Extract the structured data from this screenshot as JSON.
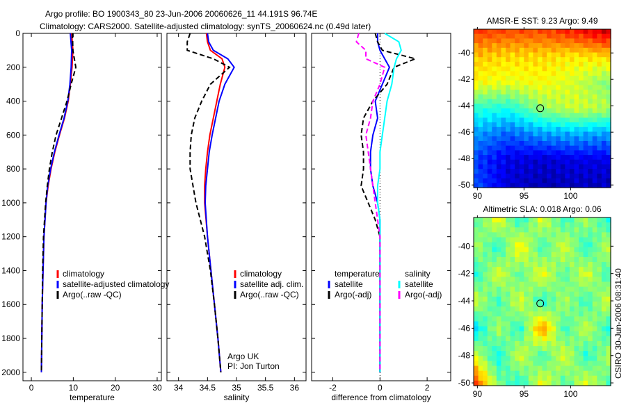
{
  "title_line1": "Argo profile: BO 1900343_80 23-Jun-2006 20060626_11 44.191S 96.74E",
  "title_line2": "Climatology: CARS2000. Satellite-adjusted climatology: synTS_20060624.nc (0.49d later)",
  "credit": "CSIRO 30-Jun-2006 08:31:40",
  "annotation": [
    "Argo UK",
    "PI: Jon Turton"
  ],
  "colors": {
    "climatology": "#ff0000",
    "satellite": "#0000ff",
    "argo": "#000000",
    "sal_satellite": "#00ffff",
    "sal_argo": "#ff00ff"
  },
  "chart_data": [
    {
      "type": "line",
      "xlabel": "temperature",
      "xlim": [
        -2,
        31
      ],
      "ylim": [
        2050,
        0
      ],
      "xticks": [
        "0",
        "10",
        "20",
        "30"
      ],
      "yticks": [
        "0",
        "200",
        "400",
        "600",
        "800",
        "1000",
        "1200",
        "1400",
        "1600",
        "1800",
        "2000"
      ],
      "depth": [
        0,
        100,
        200,
        300,
        400,
        500,
        600,
        700,
        800,
        900,
        1000,
        1200,
        1400,
        1600,
        1800,
        2000
      ],
      "series": [
        {
          "name": "climatology",
          "color": "#ff0000",
          "dash": false,
          "values": [
            9.6,
            9.9,
            9.7,
            9.3,
            8.8,
            7.9,
            6.7,
            5.6,
            4.7,
            4.0,
            3.5,
            3.0,
            2.8,
            2.6,
            2.5,
            2.4
          ]
        },
        {
          "name": "satellite-adjusted climatology",
          "color": "#0000ff",
          "dash": false,
          "values": [
            9.3,
            9.6,
            9.5,
            9.2,
            8.7,
            7.8,
            6.6,
            5.5,
            4.6,
            3.9,
            3.5,
            3.0,
            2.8,
            2.6,
            2.5,
            2.4
          ]
        },
        {
          "name": "Argo(..raw -QC)",
          "color": "#000000",
          "dash": true,
          "values": [
            9.8,
            9.9,
            10.6,
            9.5,
            8.5,
            7.2,
            5.9,
            5.0,
            4.3,
            3.8,
            3.4,
            2.9,
            2.7,
            2.6,
            2.5,
            2.4
          ]
        }
      ],
      "legend": [
        "climatology",
        "satellite-adjusted climatology",
        "Argo(..raw -QC)"
      ]
    },
    {
      "type": "line",
      "xlabel": "salinity",
      "xlim": [
        33.8,
        36.2
      ],
      "ylim": [
        2050,
        0
      ],
      "xticks": [
        "34",
        "34.5",
        "35",
        "35.5",
        "36"
      ],
      "depth": [
        0,
        50,
        100,
        150,
        200,
        300,
        400,
        500,
        600,
        700,
        800,
        900,
        1000,
        1200,
        1400,
        1600,
        1800,
        2000
      ],
      "series": [
        {
          "name": "climatology",
          "color": "#ff0000",
          "dash": false,
          "values": [
            34.48,
            34.5,
            34.55,
            34.75,
            34.8,
            34.72,
            34.66,
            34.6,
            34.54,
            34.5,
            34.47,
            34.45,
            34.45,
            34.5,
            34.56,
            34.62,
            34.68,
            34.73
          ]
        },
        {
          "name": "satellite adj. clim.",
          "color": "#0000ff",
          "dash": false,
          "values": [
            34.5,
            34.52,
            34.6,
            34.85,
            34.96,
            34.8,
            34.7,
            34.64,
            34.58,
            34.53,
            34.5,
            34.47,
            34.46,
            34.5,
            34.56,
            34.62,
            34.68,
            34.73
          ]
        },
        {
          "name": "Argo(..raw -QC)",
          "color": "#000000",
          "dash": true,
          "values": [
            34.2,
            34.15,
            34.15,
            34.6,
            34.88,
            34.55,
            34.4,
            34.28,
            34.22,
            34.2,
            34.2,
            34.25,
            34.3,
            34.45,
            34.55,
            34.62,
            34.68,
            34.73
          ]
        }
      ],
      "legend": [
        "climatology",
        "satellite adj. clim.",
        "Argo(..raw -QC)"
      ]
    },
    {
      "type": "line",
      "xlabel": "difference from climatology",
      "xlim": [
        -2.9,
        3.0
      ],
      "ylim": [
        2050,
        0
      ],
      "xticks": [
        "-2",
        "0",
        "2"
      ],
      "depth": [
        0,
        50,
        100,
        150,
        200,
        300,
        400,
        500,
        600,
        700,
        800,
        900,
        1000,
        1100,
        1200,
        1400,
        1600,
        1800,
        2000
      ],
      "series": [
        {
          "name": "temperature satellite",
          "color": "#0000ff",
          "dash": false,
          "values": [
            -0.1,
            -0.1,
            0.0,
            0.2,
            0.4,
            0.1,
            -0.2,
            -0.1,
            -0.3,
            -0.4,
            -0.4,
            -0.3,
            -0.1,
            0.0,
            0.0,
            0.0,
            0.0,
            0.0,
            0.0
          ]
        },
        {
          "name": "temperature Argo(-adj)",
          "color": "#000000",
          "dash": true,
          "values": [
            -0.2,
            -0.1,
            0.1,
            1.5,
            0.6,
            0.3,
            -0.3,
            -0.7,
            -0.8,
            -0.7,
            -0.7,
            -0.8,
            -0.5,
            -0.2,
            0.0,
            0.0,
            0.0,
            0.0,
            0.0
          ]
        },
        {
          "name": "salinity satellite",
          "color": "#00ffff",
          "dash": false,
          "values": [
            0.2,
            0.8,
            0.9,
            0.7,
            0.6,
            0.5,
            0.3,
            0.2,
            0.1,
            0.0,
            0.0,
            -0.1,
            -0.1,
            0.0,
            0.0,
            0.0,
            0.0,
            0.0,
            0.0
          ]
        },
        {
          "name": "salinity Argo(-adj)",
          "color": "#ff00ff",
          "dash": true,
          "values": [
            -0.9,
            -1.0,
            -0.6,
            -0.6,
            0.2,
            0.0,
            -0.3,
            -0.4,
            -0.6,
            -0.5,
            -0.4,
            -0.3,
            -0.2,
            -0.1,
            0.0,
            0.0,
            0.0,
            0.0,
            0.0
          ]
        }
      ],
      "legend_temperature": {
        "heading": "temperature",
        "items": [
          "satellite",
          "Argo(-adj)"
        ]
      },
      "legend_salinity": {
        "heading": "salinity",
        "items": [
          "satellite",
          "Argo(-adj)"
        ]
      }
    },
    {
      "type": "heatmap",
      "title": "AMSR-E SST: 9.23 Argo: 9.49",
      "xlim": [
        89.6,
        104.3
      ],
      "ylim": [
        -50.2,
        -38.2
      ],
      "xticks": [
        "90",
        "95",
        "100"
      ],
      "yticks": [
        "-40",
        "-42",
        "-44",
        "-46",
        "-48",
        "-50"
      ],
      "argo_position": [
        96.74,
        -44.19
      ],
      "coarse_grid": [
        [
          0.82,
          0.8,
          0.8,
          0.85,
          0.92
        ],
        [
          0.68,
          0.66,
          0.66,
          0.64,
          0.66
        ],
        [
          0.62,
          0.6,
          0.62,
          0.58,
          0.5
        ],
        [
          0.42,
          0.4,
          0.52,
          0.58,
          0.55
        ],
        [
          0.28,
          0.22,
          0.28,
          0.3,
          0.28
        ],
        [
          0.18,
          0.1,
          0.08,
          0.1,
          0.1
        ],
        [
          0.2,
          0.08,
          0.05,
          0.06,
          0.06
        ]
      ]
    },
    {
      "type": "heatmap",
      "title": "Altimetric SLA: 0.018 Argo: 0.06",
      "xlim": [
        89.6,
        104.3
      ],
      "ylim": [
        -50.2,
        -37.9
      ],
      "xticks": [
        "90",
        "95",
        "100"
      ],
      "yticks": [
        "-40",
        "-42",
        "-44",
        "-46",
        "-48",
        "-50"
      ],
      "argo_position": [
        96.74,
        -44.19
      ],
      "coarse_grid": [
        [
          0.45,
          0.62,
          0.4,
          0.6,
          0.42,
          0.55,
          0.4
        ],
        [
          0.55,
          0.4,
          0.65,
          0.42,
          0.6,
          0.4,
          0.58
        ],
        [
          0.4,
          0.6,
          0.45,
          0.62,
          0.45,
          0.6,
          0.42
        ],
        [
          0.58,
          0.42,
          0.6,
          0.4,
          0.55,
          0.42,
          0.6
        ],
        [
          0.35,
          0.55,
          0.4,
          0.75,
          0.42,
          0.58,
          0.4
        ],
        [
          0.58,
          0.38,
          0.6,
          0.42,
          0.6,
          0.4,
          0.55
        ],
        [
          0.8,
          0.5,
          0.4,
          0.62,
          0.45,
          0.6,
          0.45
        ]
      ]
    }
  ]
}
